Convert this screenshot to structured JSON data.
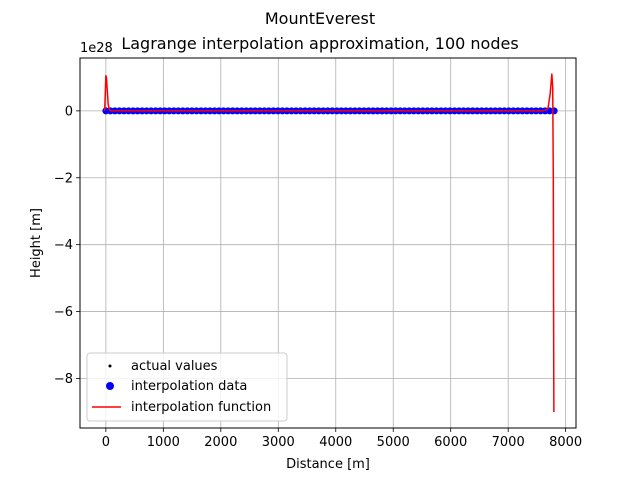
{
  "chart_data": {
    "type": "line",
    "title": "MountEverest",
    "subtitle": "Lagrange interpolation approximation, 100 nodes",
    "xlabel": "Distance [m]",
    "ylabel": "Height [m]",
    "y_scale_label": "1e28",
    "xlim": [
      -450,
      8180
    ],
    "ylim": [
      -9.48,
      1.58
    ],
    "x_ticks": [
      0,
      1000,
      2000,
      3000,
      4000,
      5000,
      6000,
      7000,
      8000
    ],
    "x_tick_labels": [
      "0",
      "1000",
      "2000",
      "3000",
      "4000",
      "5000",
      "6000",
      "7000",
      "8000"
    ],
    "y_ticks": [
      -8,
      -6,
      -4,
      -2,
      0
    ],
    "y_tick_labels": [
      "−8",
      "−6",
      "−4",
      "−2",
      "0"
    ],
    "grid": true,
    "legend_position": "lower-left",
    "series": [
      {
        "name": "actual values",
        "style": "points",
        "color": "#000000",
        "x_start": 0,
        "x_end": 7800,
        "count": 512,
        "y_approx": 0
      },
      {
        "name": "interpolation data",
        "style": "markers",
        "color": "#0000ff",
        "x_start": 0,
        "x_end": 7800,
        "count": 100,
        "y_approx": 0
      },
      {
        "name": "interpolation function",
        "style": "line",
        "color": "#ff0000",
        "points": [
          [
            -20,
            0
          ],
          [
            0,
            1.05
          ],
          [
            10,
            1.0
          ],
          [
            25,
            0.6
          ],
          [
            40,
            0.2
          ],
          [
            60,
            0.03
          ],
          [
            90,
            0
          ],
          [
            7600,
            0
          ],
          [
            7690,
            0.05
          ],
          [
            7730,
            0.5
          ],
          [
            7760,
            1.1
          ],
          [
            7775,
            0.7
          ],
          [
            7785,
            -2.0
          ],
          [
            7790,
            -6.0
          ],
          [
            7795,
            -9.0
          ]
        ]
      }
    ]
  }
}
